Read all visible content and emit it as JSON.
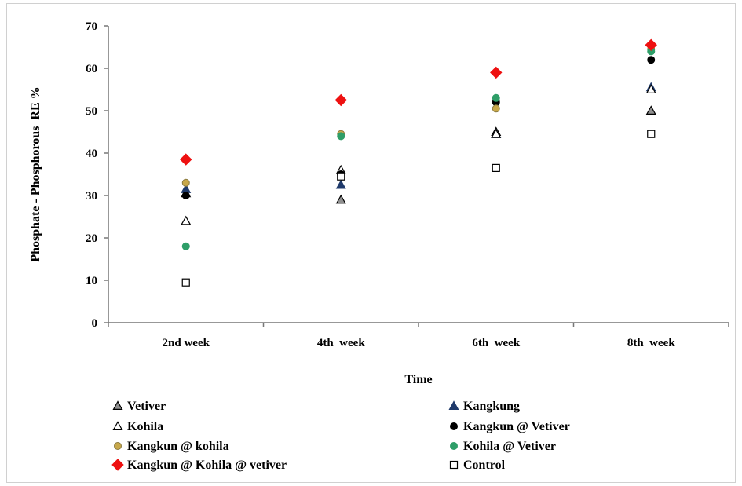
{
  "chart_data": {
    "type": "scatter",
    "categories": [
      "2nd week",
      "4th  week",
      "6th  week",
      "8th  week"
    ],
    "xlabel": "Time",
    "ylabel": "Phosphate - Phosphorous  RE %",
    "ylim": [
      0,
      70
    ],
    "yticks": [
      0,
      10,
      20,
      30,
      40,
      50,
      60,
      70
    ],
    "grid": false,
    "legend_position": "bottom",
    "series": [
      {
        "name": "Vetiver",
        "marker": "triangle",
        "fill": "#909090",
        "stroke": "#000000",
        "values": [
          30.5,
          29,
          45,
          50
        ]
      },
      {
        "name": "Kangkung",
        "marker": "triangle",
        "fill": "#1f3a6b",
        "stroke": "#1f3a6b",
        "values": [
          31.5,
          32.5,
          44.5,
          55.5
        ]
      },
      {
        "name": "Kohila",
        "marker": "triangle",
        "fill": "#ffffff",
        "stroke": "#000000",
        "values": [
          24,
          36,
          44.5,
          55
        ]
      },
      {
        "name": "Kangkun @ Vetiver",
        "marker": "circle",
        "fill": "#000000",
        "stroke": "#000000",
        "values": [
          30,
          35,
          52,
          62
        ]
      },
      {
        "name": "Kangkun @ kohila",
        "marker": "circle",
        "fill": "#c8a84a",
        "stroke": "#8a7a40",
        "values": [
          33,
          44.5,
          50.5,
          64.5
        ]
      },
      {
        "name": "Kohila @ Vetiver",
        "marker": "circle",
        "fill": "#2e9e68",
        "stroke": "#2e9e68",
        "values": [
          18,
          44,
          53,
          64
        ]
      },
      {
        "name": "Kangkun @ Kohila @ vetiver",
        "marker": "diamond",
        "fill": "#ee1111",
        "stroke": "#ee1111",
        "values": [
          38.5,
          52.5,
          59,
          65.5
        ]
      },
      {
        "name": "Control",
        "marker": "square",
        "fill": "#ffffff",
        "stroke": "#000000",
        "values": [
          9.5,
          34.5,
          36.5,
          44.5
        ]
      }
    ]
  }
}
